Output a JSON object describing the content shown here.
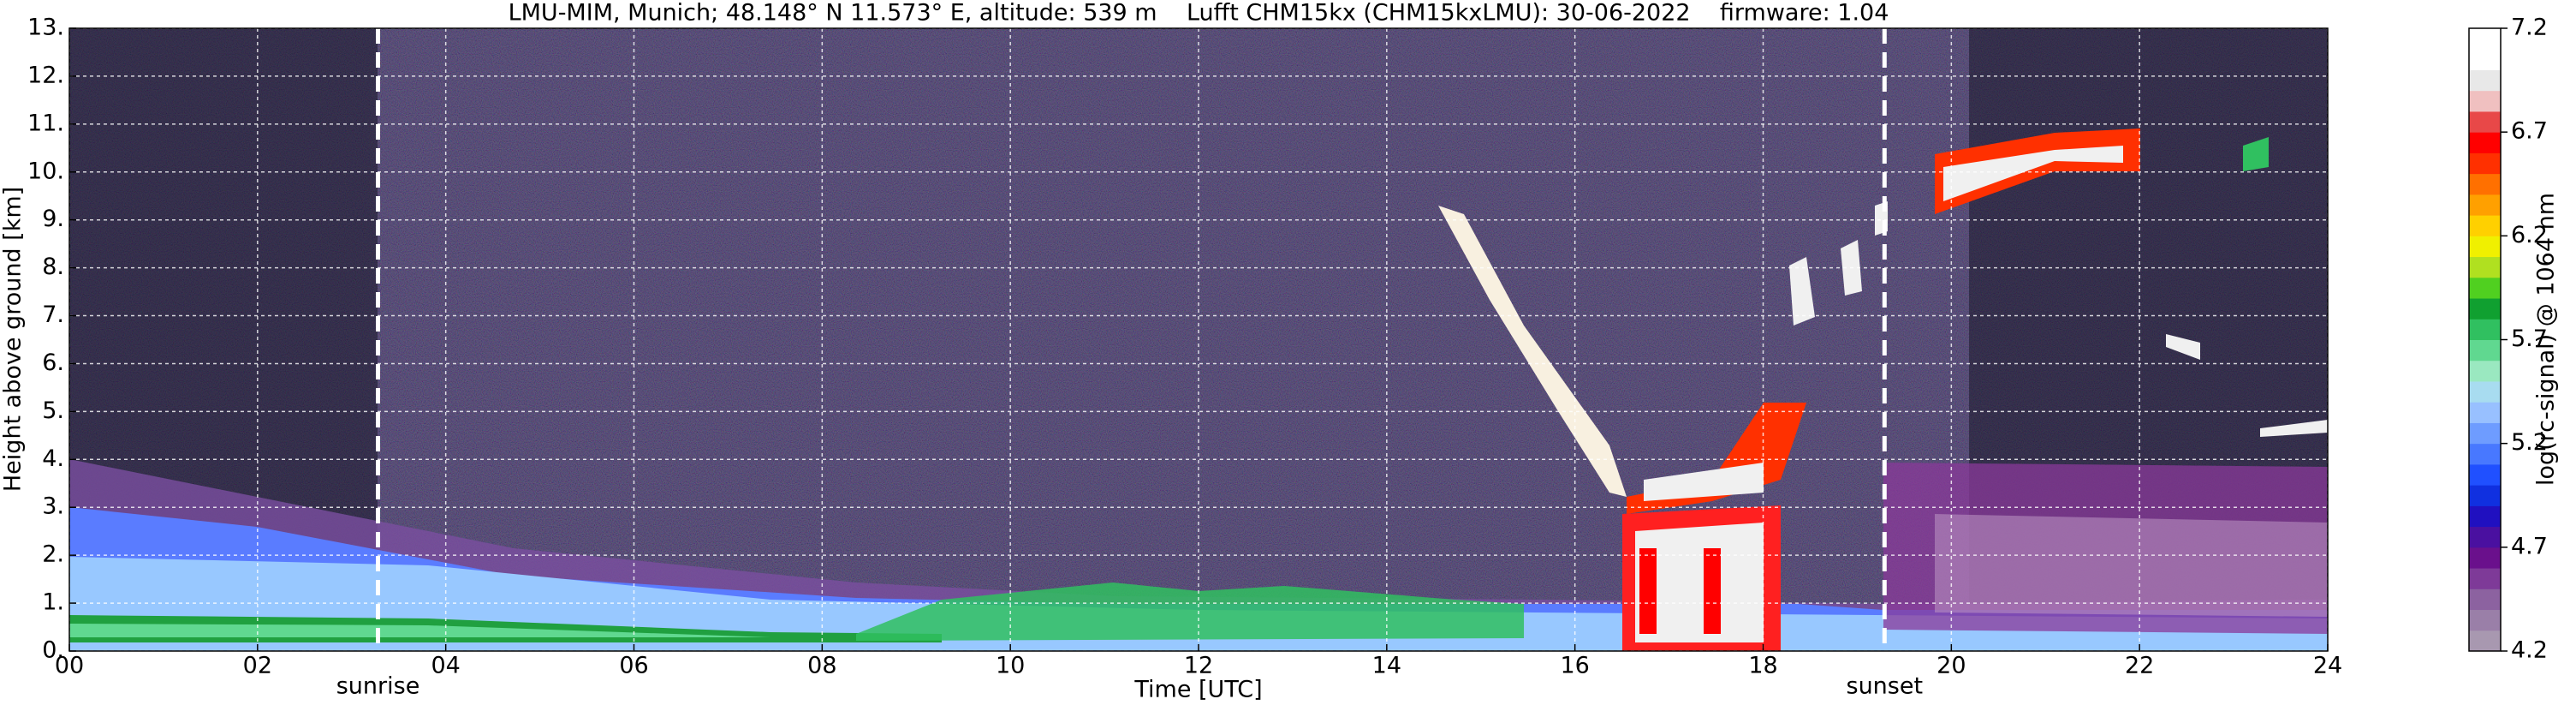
{
  "chart_data": {
    "type": "heatmap",
    "title": "LMU-MIM, Munich; 48.148° N 11.573° E, altitude: 539 m    Lufft CHM15kx (CHM15kxLMU): 30-06-2022    firmware: 1.04",
    "xlabel": "Time [UTC]",
    "ylabel": "Height above ground [km]",
    "xlim": [
      0,
      24
    ],
    "ylim": [
      0,
      13
    ],
    "xticks": [
      {
        "value": 0,
        "label": "00"
      },
      {
        "value": 2,
        "label": "02"
      },
      {
        "value": 4,
        "label": "04"
      },
      {
        "value": 6,
        "label": "06"
      },
      {
        "value": 8,
        "label": "08"
      },
      10,
      12,
      14,
      16,
      18,
      20,
      22,
      24
    ],
    "yticks": [
      {
        "value": 0,
        "label": "0."
      },
      {
        "value": 1,
        "label": "1."
      },
      {
        "value": 2,
        "label": "2."
      },
      {
        "value": 3,
        "label": "3."
      },
      {
        "value": 4,
        "label": "4."
      },
      {
        "value": 5,
        "label": "5."
      },
      {
        "value": 6,
        "label": "6."
      },
      {
        "value": 7,
        "label": "7."
      },
      {
        "value": 8,
        "label": "8."
      },
      {
        "value": 9,
        "label": "9."
      },
      {
        "value": 10,
        "label": "10."
      },
      {
        "value": 11,
        "label": "11."
      },
      {
        "value": 12,
        "label": "12."
      },
      {
        "value": 13,
        "label": "13."
      }
    ],
    "grid": true,
    "annotations": [
      {
        "text": "sunrise",
        "x": 3.28
      },
      {
        "text": "sunset",
        "x": 19.29
      }
    ],
    "colorbar": {
      "label": "log(rc-signal) @ 1064 nm",
      "lim": [
        4.2,
        7.2
      ],
      "ticks": [
        4.2,
        4.7,
        5.2,
        5.7,
        6.2,
        6.7,
        7.2
      ],
      "colors": [
        "#a898b0",
        "#9a7fa8",
        "#8c62a0",
        "#7e3a98",
        "#6a108c",
        "#4a10a0",
        "#2010c0",
        "#1030e0",
        "#2050ff",
        "#4878ff",
        "#6e9cff",
        "#98c0ff",
        "#a8dcf0",
        "#9ae8c0",
        "#60d890",
        "#30c060",
        "#10a030",
        "#50d020",
        "#b0e020",
        "#f0f000",
        "#ffd000",
        "#ffa000",
        "#ff7000",
        "#ff3000",
        "#ff0000",
        "#e84848",
        "#f0c0c0",
        "#e8e8e8",
        "#ffffff",
        "#ffffff"
      ]
    }
  }
}
